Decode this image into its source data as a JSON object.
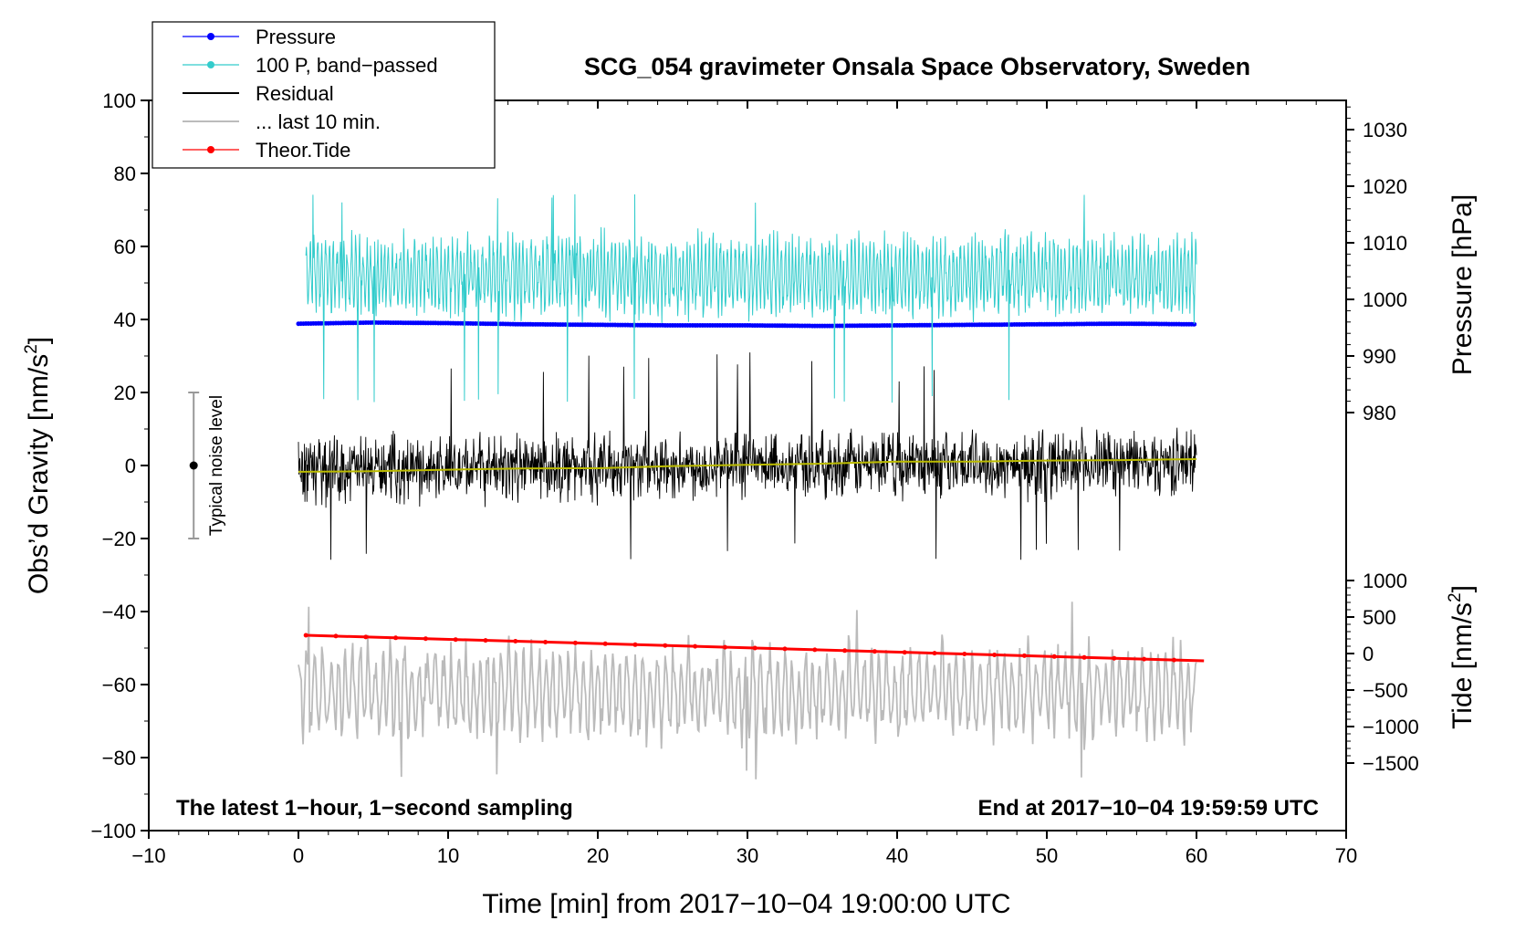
{
  "chart_data": {
    "type": "line",
    "title": "SCG_054 gravimeter Onsala Space Observatory, Sweden",
    "xlabel": "Time [min] from 2017−10−04 19:00:00 UTC",
    "ylabel_left_main": "Obs’d Gravity [nm/s",
    "ylabel_left_sup": "2",
    "ylabel_left_end": "]",
    "ylabel_right_top": "Pressure [hPa]",
    "ylabel_right_bottom_main": "Tide [nm/s",
    "ylabel_right_bottom_sup": "2",
    "ylabel_right_bottom_end": "]",
    "xlim": [
      -10,
      70
    ],
    "ylim": [
      -100,
      100
    ],
    "x_ticks": [
      {
        "value": -10,
        "label": "−10"
      },
      {
        "value": 0,
        "label": "0"
      },
      {
        "value": 10,
        "label": "10"
      },
      {
        "value": 20,
        "label": "20"
      },
      {
        "value": 30,
        "label": "30"
      },
      {
        "value": 40,
        "label": "40"
      },
      {
        "value": 50,
        "label": "50"
      },
      {
        "value": 60,
        "label": "60"
      },
      {
        "value": 70,
        "label": "70"
      }
    ],
    "y_ticks": [
      {
        "value": 100,
        "label": "100"
      },
      {
        "value": 80,
        "label": "80"
      },
      {
        "value": 60,
        "label": "60"
      },
      {
        "value": 40,
        "label": "40"
      },
      {
        "value": 20,
        "label": "20"
      },
      {
        "value": 0,
        "label": "0"
      },
      {
        "value": -20,
        "label": "−20"
      },
      {
        "value": -40,
        "label": "−40"
      },
      {
        "value": -60,
        "label": "−60"
      },
      {
        "value": -80,
        "label": "−80"
      },
      {
        "value": -100,
        "label": "−100"
      }
    ],
    "pressure_ticks": [
      {
        "value": 1030,
        "label": "1030"
      },
      {
        "value": 1020,
        "label": "1020"
      },
      {
        "value": 1010,
        "label": "1010"
      },
      {
        "value": 1000,
        "label": "1000"
      },
      {
        "value": 990,
        "label": "990"
      },
      {
        "value": 980,
        "label": "980"
      }
    ],
    "pressure_to_gravity": {
      "ref_pressure": 1000,
      "ref_gravity": 45.5,
      "gravity_per_hpa": 1.55
    },
    "tide_ticks": [
      {
        "value": 1000,
        "label": "1000"
      },
      {
        "value": 500,
        "label": "500"
      },
      {
        "value": 0,
        "label": "0"
      },
      {
        "value": -500,
        "label": "−500"
      },
      {
        "value": -1000,
        "label": "−1000"
      },
      {
        "value": -1500,
        "label": "−1500"
      }
    ],
    "tide_to_gravity": {
      "ref_tide": 0,
      "ref_gravity": -51.5,
      "gravity_per_unit": 0.02
    },
    "series": [
      {
        "name": "Pressure",
        "color": "#0000ff",
        "style": "line-dots",
        "x": [
          0,
          5,
          10,
          15,
          20,
          25,
          30,
          35,
          40,
          45,
          50,
          55,
          60
        ],
        "values": [
          995.7,
          995.9,
          995.8,
          995.6,
          995.5,
          995.4,
          995.4,
          995.3,
          995.4,
          995.5,
          995.6,
          995.7,
          995.6
        ]
      },
      {
        "name": "100 P, band−passed",
        "color": "#33cccc",
        "style": "oscillation",
        "x_range": [
          0.5,
          60
        ],
        "mean": 52,
        "amplitude": 10,
        "cycle_min": 0.25,
        "spike_max": 75,
        "spike_min": 17
      },
      {
        "name": "Residual",
        "color": "#000000",
        "style": "noise",
        "x_range": [
          0,
          60
        ],
        "mean_start": -1,
        "mean_end": 1,
        "amplitude": 10,
        "spike_max": 31,
        "spike_min": -27
      },
      {
        "name": "... last 10 min.",
        "color": "#bbbbbb",
        "style": "oscillation",
        "x_range": [
          0,
          60
        ],
        "mean": -62,
        "amplitude": 12,
        "cycle_min": 0.5,
        "spike_max": -37,
        "spike_min": -86
      },
      {
        "name": "Theor.Tide",
        "color": "#ff0000",
        "style": "line-dots",
        "x": [
          0.5,
          60.5
        ],
        "values": [
          -46.5,
          -53.5
        ]
      },
      {
        "name": "smoothed residual",
        "color": "#bbbb00",
        "style": "line",
        "x": [
          0,
          5,
          10,
          15,
          20,
          25,
          30,
          35,
          40,
          45,
          50,
          55,
          60
        ],
        "values": [
          -1.5,
          -1.3,
          -1,
          -0.6,
          -0.4,
          0,
          0.5,
          0.8,
          1,
          1.2,
          1.4,
          1.6,
          1.7
        ]
      }
    ],
    "noise_bar": {
      "label": "Typical noise level",
      "x": -7,
      "center": 0,
      "low": -20,
      "high": 20
    },
    "legend": {
      "placement": "top-left",
      "entries": [
        {
          "label": "Pressure",
          "color": "#0000ff",
          "marker": true
        },
        {
          "label": "100 P, band−passed",
          "color": "#33cccc",
          "marker": true
        },
        {
          "label": "Residual",
          "color": "#000000",
          "marker": false
        },
        {
          "label": "... last 10 min.",
          "color": "#bbbbbb",
          "marker": false
        },
        {
          "label": "Theor.Tide",
          "color": "#ff0000",
          "marker": true
        }
      ]
    },
    "annotations": {
      "bottom_left": "The latest 1−hour, 1−second sampling",
      "bottom_right": "End at 2017−10−04 19:59:59 UTC"
    }
  }
}
